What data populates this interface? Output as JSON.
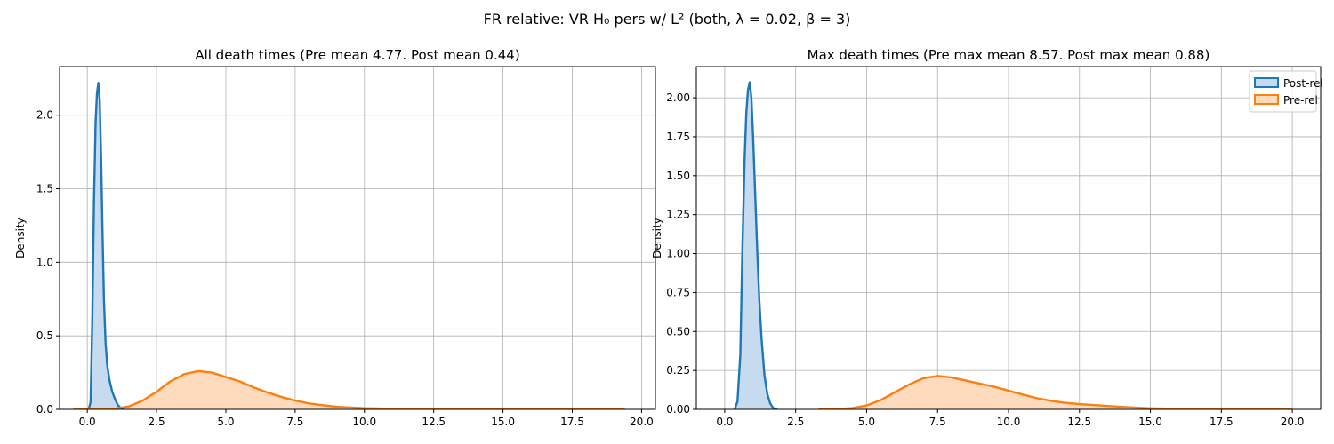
{
  "figure": {
    "suptitle": "FR relative: VR H₀ pers w/ L² (both, λ = 0.02, β = 3)"
  },
  "chart_data": [
    {
      "type": "area",
      "title": "All death times (Pre mean 4.77. Post mean 0.44)",
      "xlabel": "",
      "ylabel": "Density",
      "xlim": [
        -1.0,
        20.5
      ],
      "ylim": [
        0,
        2.33
      ],
      "xticks": [
        0.0,
        2.5,
        5.0,
        7.5,
        10.0,
        12.5,
        15.0,
        17.5,
        20.0
      ],
      "xtick_labels": [
        "0.0",
        "2.5",
        "5.0",
        "7.5",
        "10.0",
        "12.5",
        "15.0",
        "17.5",
        "20.0"
      ],
      "yticks": [
        0.0,
        0.5,
        1.0,
        1.5,
        2.0
      ],
      "ytick_labels": [
        "0.0",
        "0.5",
        "1.0",
        "1.5",
        "2.0"
      ],
      "grid": true,
      "legend": false,
      "series": [
        {
          "name": "Post-rel",
          "color": "#1f77b4",
          "x": [
            0.05,
            0.12,
            0.18,
            0.24,
            0.3,
            0.35,
            0.4,
            0.45,
            0.5,
            0.55,
            0.6,
            0.66,
            0.72,
            0.8,
            0.9,
            1.0,
            1.1,
            1.2,
            1.3
          ],
          "y": [
            0.0,
            0.05,
            0.6,
            1.4,
            1.95,
            2.15,
            2.22,
            2.1,
            1.7,
            1.2,
            0.75,
            0.45,
            0.3,
            0.2,
            0.12,
            0.07,
            0.03,
            0.01,
            0.0
          ]
        },
        {
          "name": "Pre-rel",
          "color": "#ff7f0e",
          "x": [
            -0.5,
            0.5,
            1.0,
            1.5,
            2.0,
            2.5,
            3.0,
            3.5,
            4.0,
            4.5,
            5.0,
            5.5,
            6.0,
            6.5,
            7.0,
            7.5,
            8.0,
            8.5,
            9.0,
            10.0,
            11.0,
            12.0,
            14.0,
            16.0,
            19.4
          ],
          "y": [
            0.0,
            0.0,
            0.005,
            0.02,
            0.06,
            0.12,
            0.19,
            0.24,
            0.26,
            0.25,
            0.22,
            0.19,
            0.15,
            0.115,
            0.085,
            0.06,
            0.04,
            0.028,
            0.018,
            0.008,
            0.004,
            0.002,
            0.001,
            0.0,
            0.0
          ]
        }
      ]
    },
    {
      "type": "area",
      "title": "Max death times (Pre max mean 8.57. Post max mean 0.88)",
      "xlabel": "",
      "ylabel": "Density",
      "xlim": [
        -1.0,
        21.0
      ],
      "ylim": [
        0,
        2.2
      ],
      "xticks": [
        0.0,
        2.5,
        5.0,
        7.5,
        10.0,
        12.5,
        15.0,
        17.5,
        20.0
      ],
      "xtick_labels": [
        "0.0",
        "2.5",
        "5.0",
        "7.5",
        "10.0",
        "12.5",
        "15.0",
        "17.5",
        "20.0"
      ],
      "yticks": [
        0.0,
        0.25,
        0.5,
        0.75,
        1.0,
        1.25,
        1.5,
        1.75,
        2.0
      ],
      "ytick_labels": [
        "0.00",
        "0.25",
        "0.50",
        "0.75",
        "1.00",
        "1.25",
        "1.50",
        "1.75",
        "2.00"
      ],
      "grid": true,
      "legend": "top-right",
      "series": [
        {
          "name": "Post-rel",
          "color": "#1f77b4",
          "x": [
            0.35,
            0.45,
            0.55,
            0.62,
            0.7,
            0.76,
            0.82,
            0.88,
            0.94,
            1.0,
            1.08,
            1.15,
            1.22,
            1.3,
            1.4,
            1.5,
            1.6,
            1.7,
            1.85
          ],
          "y": [
            0.0,
            0.05,
            0.35,
            1.0,
            1.6,
            1.9,
            2.05,
            2.1,
            2.0,
            1.75,
            1.35,
            1.0,
            0.7,
            0.45,
            0.22,
            0.1,
            0.04,
            0.01,
            0.0
          ]
        },
        {
          "name": "Pre-rel",
          "color": "#ff7f0e",
          "x": [
            3.3,
            4.0,
            4.5,
            5.0,
            5.5,
            6.0,
            6.5,
            7.0,
            7.5,
            8.0,
            8.5,
            9.0,
            9.5,
            10.0,
            10.5,
            11.0,
            11.5,
            12.0,
            12.5,
            13.0,
            13.5,
            14.0,
            14.5,
            15.0,
            16.0,
            17.0,
            18.0,
            20.0
          ],
          "y": [
            0.0,
            0.002,
            0.008,
            0.025,
            0.06,
            0.11,
            0.16,
            0.2,
            0.215,
            0.205,
            0.185,
            0.165,
            0.145,
            0.12,
            0.095,
            0.072,
            0.055,
            0.042,
            0.034,
            0.028,
            0.022,
            0.016,
            0.011,
            0.007,
            0.003,
            0.001,
            0.0,
            0.0
          ]
        }
      ]
    }
  ]
}
